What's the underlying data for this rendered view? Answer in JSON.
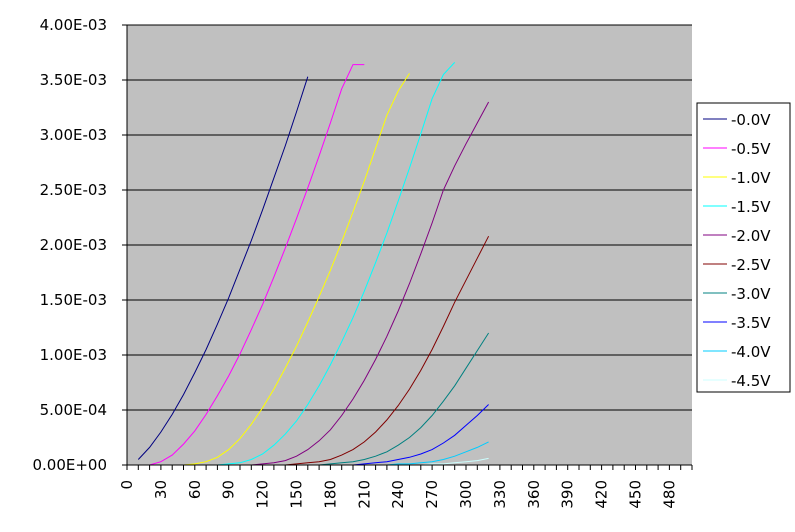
{
  "chart_data": {
    "type": "line",
    "title": "",
    "xlabel": "",
    "ylabel": "",
    "xlim": [
      0,
      500
    ],
    "ylim": [
      0,
      0.004
    ],
    "grid": "horizontal",
    "legend_position": "right",
    "y_ticks": [
      "0.00E+00",
      "5.00E-04",
      "1.00E-03",
      "1.50E-03",
      "2.00E-03",
      "2.50E-03",
      "3.00E-03",
      "3.50E-03",
      "4.00E-03"
    ],
    "x_ticks": [
      "0",
      "30",
      "60",
      "90",
      "120",
      "150",
      "180",
      "210",
      "240",
      "270",
      "300",
      "330",
      "360",
      "390",
      "420",
      "450",
      "480"
    ],
    "series": [
      {
        "name": "-0.0V",
        "color": "#000080",
        "x": [
          10,
          20,
          30,
          40,
          50,
          60,
          70,
          80,
          90,
          100,
          110,
          120,
          130,
          140,
          150,
          160
        ],
        "y": [
          5e-05,
          0.00016,
          0.0003,
          0.00046,
          0.00064,
          0.00084,
          0.00105,
          0.00128,
          0.00152,
          0.00178,
          0.00204,
          0.00232,
          0.00261,
          0.0029,
          0.00321,
          0.00353
        ]
      },
      {
        "name": "-0.5V",
        "color": "#FF00FF",
        "x": [
          20,
          30,
          40,
          50,
          60,
          70,
          80,
          90,
          100,
          110,
          120,
          130,
          140,
          150,
          160,
          170,
          180,
          190,
          200,
          210
        ],
        "y": [
          0,
          3e-05,
          9e-05,
          0.00019,
          0.00031,
          0.00046,
          0.00063,
          0.00081,
          0.00101,
          0.00123,
          0.00146,
          0.00171,
          0.00197,
          0.00224,
          0.00252,
          0.00281,
          0.00311,
          0.00342,
          0.00364,
          0.00364
        ]
      },
      {
        "name": "-1.0V",
        "color": "#FFFF00",
        "x": [
          50,
          60,
          70,
          80,
          90,
          100,
          110,
          120,
          130,
          140,
          150,
          160,
          170,
          180,
          190,
          200,
          210,
          220,
          230,
          240,
          250
        ],
        "y": [
          0,
          1e-05,
          3e-05,
          7e-05,
          0.00014,
          0.00024,
          0.00037,
          0.00052,
          0.00069,
          0.00088,
          0.00108,
          0.0013,
          0.00153,
          0.00177,
          0.00203,
          0.0023,
          0.00258,
          0.00288,
          0.00318,
          0.0034,
          0.00356
        ]
      },
      {
        "name": "-1.5V",
        "color": "#00FFFF",
        "x": [
          80,
          90,
          100,
          110,
          120,
          130,
          140,
          150,
          160,
          170,
          180,
          190,
          200,
          210,
          220,
          230,
          240,
          250,
          260,
          270,
          280,
          290
        ],
        "y": [
          0,
          1e-05,
          2e-05,
          5e-05,
          0.0001,
          0.00018,
          0.00028,
          0.0004,
          0.00055,
          0.00072,
          0.00091,
          0.00112,
          0.00134,
          0.00158,
          0.00184,
          0.00211,
          0.0024,
          0.0027,
          0.00301,
          0.00333,
          0.00355,
          0.00366
        ]
      },
      {
        "name": "-2.0V",
        "color": "#800080",
        "x": [
          110,
          120,
          130,
          140,
          150,
          160,
          170,
          180,
          190,
          200,
          210,
          220,
          230,
          240,
          250,
          260,
          270,
          280,
          290,
          300,
          310,
          320
        ],
        "y": [
          0,
          1e-05,
          2e-05,
          4e-05,
          8e-05,
          0.00014,
          0.00022,
          0.00032,
          0.00045,
          0.0006,
          0.00077,
          0.00096,
          0.00117,
          0.0014,
          0.00165,
          0.00192,
          0.0022,
          0.0025,
          0.00272,
          0.00292,
          0.00311,
          0.0033
        ]
      },
      {
        "name": "-2.5V",
        "color": "#800000",
        "x": [
          140,
          150,
          160,
          170,
          180,
          190,
          200,
          210,
          220,
          230,
          240,
          250,
          260,
          270,
          280,
          290,
          300,
          310,
          320
        ],
        "y": [
          0,
          1e-05,
          2e-05,
          3e-05,
          5e-05,
          9e-05,
          0.00014,
          0.00021,
          0.0003,
          0.00041,
          0.00054,
          0.00069,
          0.00086,
          0.00105,
          0.00126,
          0.00148,
          0.00168,
          0.00188,
          0.00208
        ]
      },
      {
        "name": "-3.0V",
        "color": "#008080",
        "x": [
          170,
          180,
          190,
          200,
          210,
          220,
          230,
          240,
          250,
          260,
          270,
          280,
          290,
          300,
          310,
          320
        ],
        "y": [
          0,
          1e-05,
          2e-05,
          3e-05,
          5e-05,
          8e-05,
          0.00012,
          0.00018,
          0.00025,
          0.00034,
          0.00045,
          0.00058,
          0.00072,
          0.00088,
          0.00104,
          0.0012
        ]
      },
      {
        "name": "-3.5V",
        "color": "#0000FF",
        "x": [
          200,
          210,
          220,
          230,
          240,
          250,
          260,
          270,
          280,
          290,
          300,
          310,
          320
        ],
        "y": [
          0,
          1e-05,
          2e-05,
          3e-05,
          5e-05,
          7e-05,
          0.0001,
          0.00014,
          0.0002,
          0.00027,
          0.00036,
          0.00045,
          0.00055
        ]
      },
      {
        "name": "-4.0V",
        "color": "#00CCFF",
        "x": [
          230,
          240,
          250,
          260,
          270,
          280,
          290,
          300,
          310,
          320
        ],
        "y": [
          0,
          1e-05,
          1e-05,
          2e-05,
          3e-05,
          5e-05,
          8e-05,
          0.00012,
          0.00016,
          0.00021
        ]
      },
      {
        "name": "-4.5V",
        "color": "#CCFFFF",
        "x": [
          260,
          270,
          280,
          290,
          300,
          310,
          320
        ],
        "y": [
          0,
          1e-05,
          1e-05,
          2e-05,
          3e-05,
          4e-05,
          6e-05
        ]
      }
    ]
  }
}
